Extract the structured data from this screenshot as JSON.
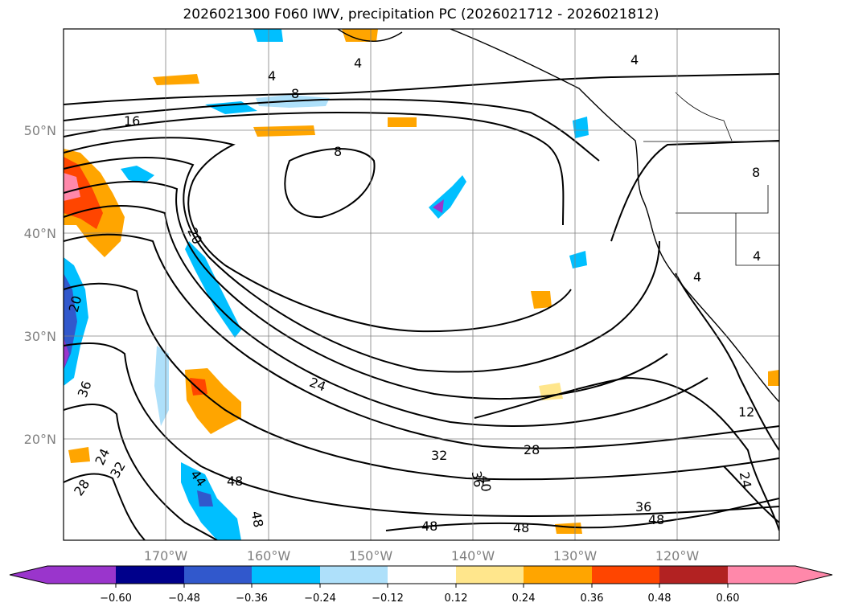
{
  "title": "2026021300 F060 IWV, precipitation PC (2026021712 - 2026021812)",
  "map": {
    "lat_labels": [
      "50°N",
      "40°N",
      "30°N",
      "20°N"
    ],
    "lon_labels": [
      "170°W",
      "160°W",
      "150°W",
      "140°W",
      "130°W",
      "120°W"
    ],
    "contour_labels": [
      "4",
      "4",
      "4",
      "4",
      "8",
      "8",
      "8",
      "16",
      "20",
      "20",
      "24",
      "24",
      "24",
      "28",
      "28",
      "32",
      "32",
      "36",
      "36",
      "36",
      "40",
      "44",
      "48",
      "48",
      "48",
      "48",
      "48",
      "12",
      "4"
    ]
  },
  "colorbar": {
    "ticks": [
      "−0.60",
      "−0.48",
      "−0.36",
      "−0.24",
      "−0.12",
      "0.12",
      "0.24",
      "0.36",
      "0.48",
      "0.60"
    ],
    "colors": [
      "#9a35cc",
      "#00008b",
      "#3158cc",
      "#00bfff",
      "#aee0fa",
      "#ffffff",
      "#ffe68c",
      "#ffa500",
      "#ff4500",
      "#b22222",
      "#ff88aa",
      "#ff88aa"
    ]
  }
}
